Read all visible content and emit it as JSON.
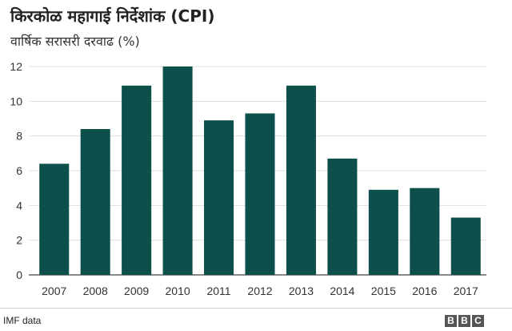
{
  "chart_data": {
    "type": "bar",
    "title": "किरकोळ महागाई निर्देशांक (CPI)",
    "subtitle": "वार्षिक सरासरी दरवाढ (%)",
    "categories": [
      "2007",
      "2008",
      "2009",
      "2010",
      "2011",
      "2012",
      "2013",
      "2014",
      "2015",
      "2016",
      "2017"
    ],
    "values": [
      6.4,
      8.4,
      10.9,
      12.0,
      8.9,
      9.3,
      10.9,
      6.7,
      4.9,
      5.0,
      3.3
    ],
    "xlabel": "",
    "ylabel": "",
    "ylim": [
      0,
      12
    ],
    "yticks": [
      "0",
      "2",
      "4",
      "6",
      "8",
      "10",
      "12"
    ],
    "grid": true,
    "bar_color": "#0d4f4a"
  },
  "footer": {
    "source": "IMF data",
    "logo_letters": [
      "B",
      "B",
      "C"
    ]
  }
}
